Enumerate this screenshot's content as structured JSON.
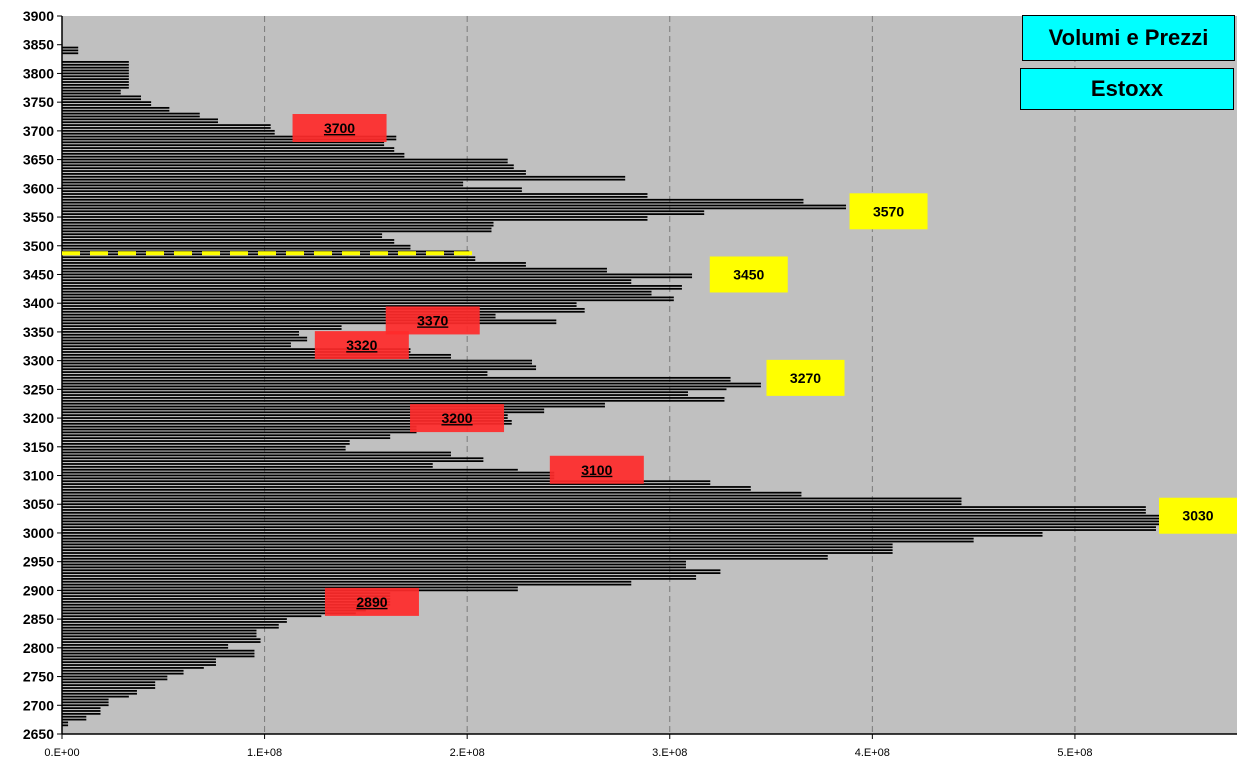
{
  "titles": {
    "main": "Volumi e Prezzi",
    "sub": "Estoxx"
  },
  "colors": {
    "plot_bg": "#c0c0c0",
    "bar": "#000000",
    "yellow": "#ffff00",
    "red": "#ff2a2a",
    "title_bg": "#00ffff",
    "dashed": "#ffff00"
  },
  "chart_data": {
    "type": "bar",
    "orientation": "horizontal",
    "title": "Volumi e Prezzi",
    "subtitle": "Estoxx",
    "xlim": [
      0,
      580000000
    ],
    "ylim": [
      2650,
      3900
    ],
    "x_ticks": [
      "0.E+00",
      "1.E+08",
      "2.E+08",
      "3.E+08",
      "4.E+08",
      "5.E+08"
    ],
    "x_tick_values": [
      0,
      100000000,
      200000000,
      300000000,
      400000000,
      500000000
    ],
    "y_ticks": [
      2650,
      2700,
      2750,
      2800,
      2850,
      2900,
      2950,
      3000,
      3050,
      3100,
      3150,
      3200,
      3250,
      3300,
      3350,
      3400,
      3450,
      3500,
      3550,
      3600,
      3650,
      3700,
      3750,
      3800,
      3850,
      3900
    ],
    "grid": "vertical dashed",
    "bar_step": 5,
    "bars": [
      [
        2665,
        3000000
      ],
      [
        2670,
        3000000
      ],
      [
        2675,
        12000000
      ],
      [
        2680,
        12000000
      ],
      [
        2685,
        19000000
      ],
      [
        2690,
        19000000
      ],
      [
        2695,
        19000000
      ],
      [
        2700,
        23000000
      ],
      [
        2705,
        23000000
      ],
      [
        2710,
        23000000
      ],
      [
        2715,
        33000000
      ],
      [
        2720,
        37000000
      ],
      [
        2725,
        37000000
      ],
      [
        2730,
        46000000
      ],
      [
        2735,
        46000000
      ],
      [
        2740,
        46000000
      ],
      [
        2745,
        52000000
      ],
      [
        2750,
        52000000
      ],
      [
        2755,
        60000000
      ],
      [
        2760,
        60000000
      ],
      [
        2765,
        70000000
      ],
      [
        2770,
        76000000
      ],
      [
        2775,
        76000000
      ],
      [
        2780,
        76000000
      ],
      [
        2785,
        95000000
      ],
      [
        2790,
        95000000
      ],
      [
        2795,
        95000000
      ],
      [
        2800,
        82000000
      ],
      [
        2805,
        82000000
      ],
      [
        2810,
        98000000
      ],
      [
        2815,
        98000000
      ],
      [
        2820,
        96000000
      ],
      [
        2825,
        96000000
      ],
      [
        2830,
        96000000
      ],
      [
        2835,
        107000000
      ],
      [
        2840,
        107000000
      ],
      [
        2845,
        111000000
      ],
      [
        2850,
        111000000
      ],
      [
        2855,
        128000000
      ],
      [
        2860,
        145000000
      ],
      [
        2865,
        150000000
      ],
      [
        2870,
        150000000
      ],
      [
        2875,
        162000000
      ],
      [
        2880,
        162000000
      ],
      [
        2885,
        162000000
      ],
      [
        2890,
        162000000
      ],
      [
        2895,
        162000000
      ],
      [
        2900,
        225000000
      ],
      [
        2905,
        225000000
      ],
      [
        2910,
        281000000
      ],
      [
        2915,
        281000000
      ],
      [
        2920,
        313000000
      ],
      [
        2925,
        313000000
      ],
      [
        2930,
        325000000
      ],
      [
        2935,
        325000000
      ],
      [
        2940,
        308000000
      ],
      [
        2945,
        308000000
      ],
      [
        2950,
        308000000
      ],
      [
        2955,
        378000000
      ],
      [
        2960,
        378000000
      ],
      [
        2965,
        410000000
      ],
      [
        2970,
        410000000
      ],
      [
        2975,
        410000000
      ],
      [
        2980,
        410000000
      ],
      [
        2985,
        450000000
      ],
      [
        2990,
        450000000
      ],
      [
        2995,
        484000000
      ],
      [
        3000,
        484000000
      ],
      [
        3005,
        540000000
      ],
      [
        3010,
        540000000
      ],
      [
        3015,
        549000000
      ],
      [
        3020,
        549000000
      ],
      [
        3025,
        549000000
      ],
      [
        3030,
        549000000
      ],
      [
        3035,
        535000000
      ],
      [
        3040,
        535000000
      ],
      [
        3045,
        535000000
      ],
      [
        3050,
        444000000
      ],
      [
        3055,
        444000000
      ],
      [
        3060,
        444000000
      ],
      [
        3065,
        365000000
      ],
      [
        3070,
        365000000
      ],
      [
        3075,
        340000000
      ],
      [
        3080,
        340000000
      ],
      [
        3085,
        320000000
      ],
      [
        3090,
        320000000
      ],
      [
        3095,
        243000000
      ],
      [
        3100,
        243000000
      ],
      [
        3105,
        243000000
      ],
      [
        3110,
        225000000
      ],
      [
        3115,
        183000000
      ],
      [
        3120,
        183000000
      ],
      [
        3125,
        208000000
      ],
      [
        3130,
        208000000
      ],
      [
        3135,
        192000000
      ],
      [
        3140,
        192000000
      ],
      [
        3145,
        140000000
      ],
      [
        3150,
        140000000
      ],
      [
        3155,
        142000000
      ],
      [
        3160,
        142000000
      ],
      [
        3165,
        162000000
      ],
      [
        3170,
        162000000
      ],
      [
        3175,
        175000000
      ],
      [
        3180,
        175000000
      ],
      [
        3185,
        175000000
      ],
      [
        3190,
        222000000
      ],
      [
        3195,
        222000000
      ],
      [
        3200,
        220000000
      ],
      [
        3205,
        220000000
      ],
      [
        3210,
        238000000
      ],
      [
        3215,
        238000000
      ],
      [
        3220,
        268000000
      ],
      [
        3225,
        268000000
      ],
      [
        3230,
        327000000
      ],
      [
        3235,
        327000000
      ],
      [
        3240,
        309000000
      ],
      [
        3245,
        309000000
      ],
      [
        3250,
        328000000
      ],
      [
        3255,
        345000000
      ],
      [
        3260,
        345000000
      ],
      [
        3265,
        330000000
      ],
      [
        3270,
        330000000
      ],
      [
        3275,
        210000000
      ],
      [
        3280,
        210000000
      ],
      [
        3285,
        234000000
      ],
      [
        3290,
        234000000
      ],
      [
        3295,
        232000000
      ],
      [
        3300,
        232000000
      ],
      [
        3305,
        192000000
      ],
      [
        3310,
        192000000
      ],
      [
        3315,
        172000000
      ],
      [
        3320,
        172000000
      ],
      [
        3325,
        113000000
      ],
      [
        3330,
        113000000
      ],
      [
        3335,
        121000000
      ],
      [
        3340,
        121000000
      ],
      [
        3345,
        117000000
      ],
      [
        3350,
        117000000
      ],
      [
        3355,
        138000000
      ],
      [
        3360,
        138000000
      ],
      [
        3365,
        244000000
      ],
      [
        3370,
        244000000
      ],
      [
        3375,
        214000000
      ],
      [
        3380,
        214000000
      ],
      [
        3385,
        258000000
      ],
      [
        3390,
        258000000
      ],
      [
        3395,
        254000000
      ],
      [
        3400,
        254000000
      ],
      [
        3405,
        302000000
      ],
      [
        3410,
        302000000
      ],
      [
        3415,
        291000000
      ],
      [
        3420,
        291000000
      ],
      [
        3425,
        306000000
      ],
      [
        3430,
        306000000
      ],
      [
        3435,
        281000000
      ],
      [
        3440,
        281000000
      ],
      [
        3445,
        311000000
      ],
      [
        3450,
        311000000
      ],
      [
        3455,
        269000000
      ],
      [
        3460,
        269000000
      ],
      [
        3465,
        229000000
      ],
      [
        3470,
        229000000
      ],
      [
        3475,
        204000000
      ],
      [
        3480,
        204000000
      ],
      [
        3485,
        201000000
      ],
      [
        3490,
        201000000
      ],
      [
        3495,
        172000000
      ],
      [
        3500,
        172000000
      ],
      [
        3505,
        164000000
      ],
      [
        3510,
        164000000
      ],
      [
        3515,
        158000000
      ],
      [
        3520,
        158000000
      ],
      [
        3525,
        212000000
      ],
      [
        3530,
        212000000
      ],
      [
        3535,
        213000000
      ],
      [
        3540,
        213000000
      ],
      [
        3545,
        289000000
      ],
      [
        3550,
        289000000
      ],
      [
        3555,
        317000000
      ],
      [
        3560,
        317000000
      ],
      [
        3565,
        387000000
      ],
      [
        3570,
        387000000
      ],
      [
        3575,
        366000000
      ],
      [
        3580,
        366000000
      ],
      [
        3585,
        289000000
      ],
      [
        3590,
        289000000
      ],
      [
        3595,
        227000000
      ],
      [
        3600,
        227000000
      ],
      [
        3605,
        198000000
      ],
      [
        3610,
        198000000
      ],
      [
        3615,
        278000000
      ],
      [
        3620,
        278000000
      ],
      [
        3625,
        229000000
      ],
      [
        3630,
        229000000
      ],
      [
        3635,
        223000000
      ],
      [
        3640,
        223000000
      ],
      [
        3645,
        220000000
      ],
      [
        3650,
        220000000
      ],
      [
        3655,
        169000000
      ],
      [
        3660,
        169000000
      ],
      [
        3665,
        164000000
      ],
      [
        3670,
        164000000
      ],
      [
        3675,
        159000000
      ],
      [
        3680,
        159000000
      ],
      [
        3685,
        165000000
      ],
      [
        3690,
        165000000
      ],
      [
        3695,
        105000000
      ],
      [
        3700,
        105000000
      ],
      [
        3705,
        103000000
      ],
      [
        3710,
        103000000
      ],
      [
        3715,
        77000000
      ],
      [
        3720,
        77000000
      ],
      [
        3725,
        68000000
      ],
      [
        3730,
        68000000
      ],
      [
        3735,
        53000000
      ],
      [
        3740,
        53000000
      ],
      [
        3745,
        44000000
      ],
      [
        3750,
        44000000
      ],
      [
        3755,
        39000000
      ],
      [
        3760,
        39000000
      ],
      [
        3765,
        29000000
      ],
      [
        3770,
        29000000
      ],
      [
        3775,
        33000000
      ],
      [
        3780,
        33000000
      ],
      [
        3785,
        33000000
      ],
      [
        3790,
        33000000
      ],
      [
        3795,
        33000000
      ],
      [
        3800,
        33000000
      ],
      [
        3805,
        33000000
      ],
      [
        3810,
        33000000
      ],
      [
        3815,
        33000000
      ],
      [
        3820,
        33000000
      ],
      [
        3825,
        0
      ],
      [
        3830,
        0
      ],
      [
        3835,
        8000000
      ],
      [
        3840,
        8000000
      ],
      [
        3845,
        8000000
      ]
    ],
    "annotations_yellow": [
      {
        "label": "3570",
        "x": 408000000,
        "y": 3560
      },
      {
        "label": "3450",
        "x": 339000000,
        "y": 3450
      },
      {
        "label": "3270",
        "x": 367000000,
        "y": 3270
      },
      {
        "label": "3030",
        "x": 579000000,
        "y": 3030
      }
    ],
    "annotations_red": [
      {
        "label": "3700",
        "x": 137000000,
        "y": 3705
      },
      {
        "label": "3370",
        "x": 183000000,
        "y": 3370
      },
      {
        "label": "3320",
        "x": 148000000,
        "y": 3327
      },
      {
        "label": "3200",
        "x": 195000000,
        "y": 3200
      },
      {
        "label": "3100",
        "x": 264000000,
        "y": 3110
      },
      {
        "label": "2890",
        "x": 153000000,
        "y": 2880
      }
    ],
    "reference_line": {
      "y": 3487,
      "x_end": 205000000,
      "style": "dashed"
    }
  }
}
